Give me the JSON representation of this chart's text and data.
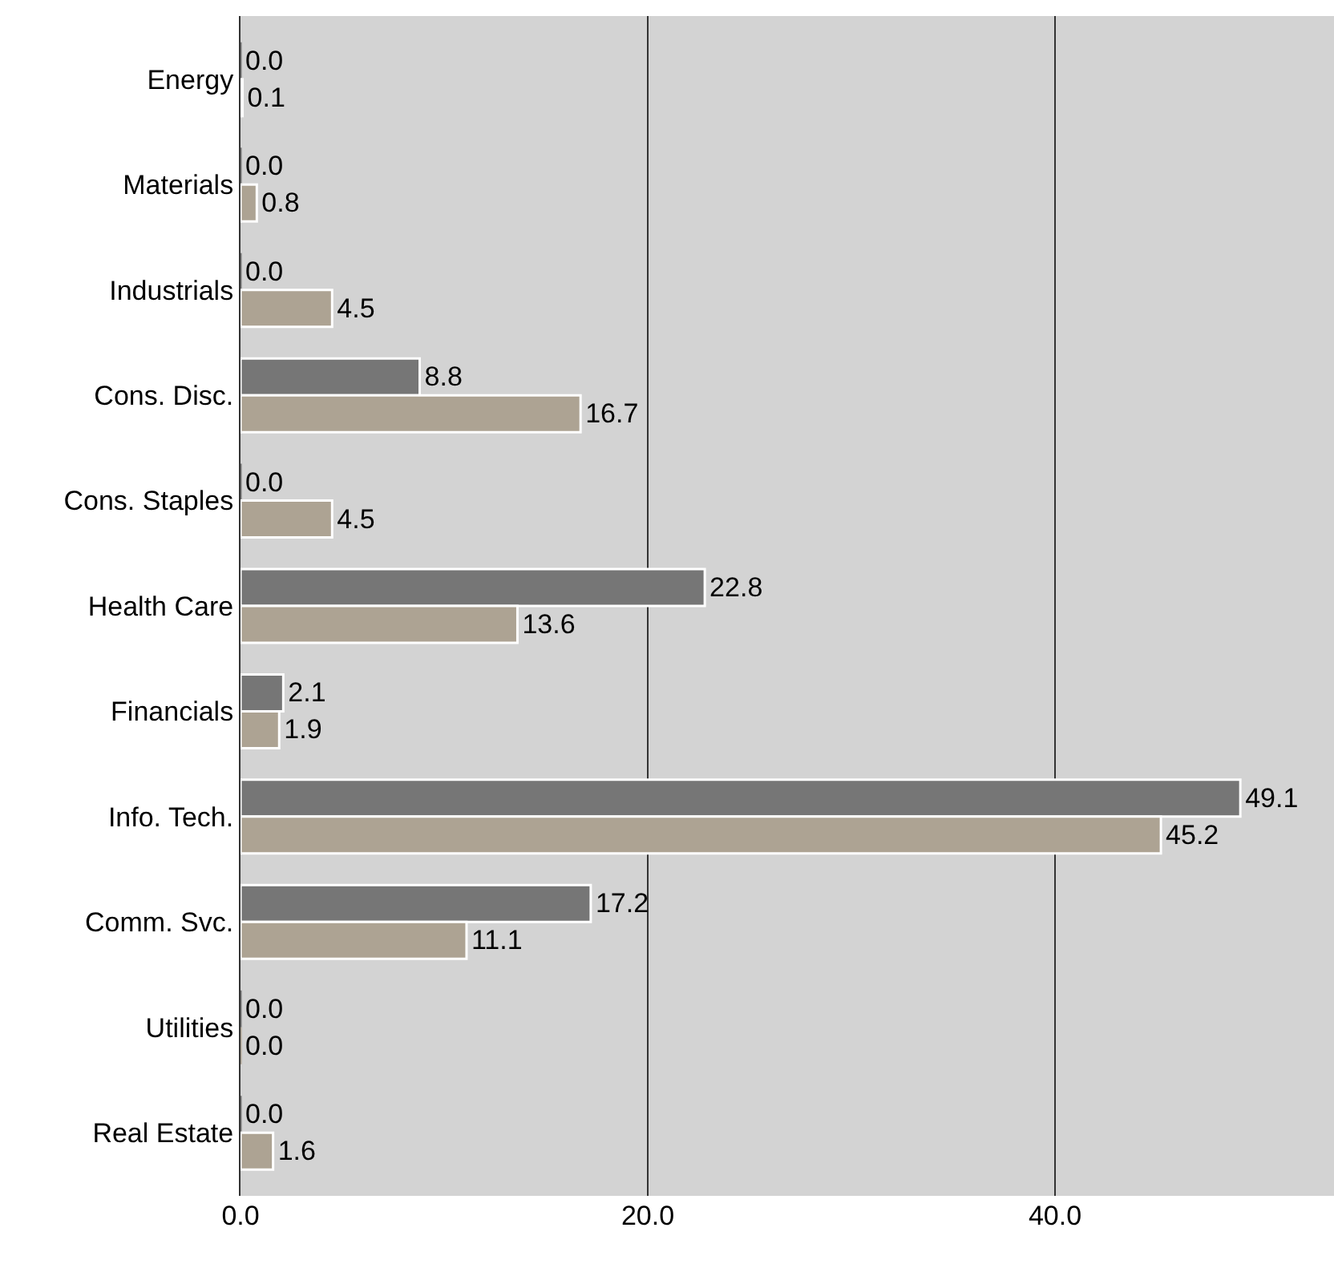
{
  "chart_data": {
    "type": "bar",
    "orientation": "horizontal",
    "categories": [
      "Energy",
      "Materials",
      "Industrials",
      "Cons. Disc.",
      "Cons. Staples",
      "Health Care",
      "Financials",
      "Info. Tech.",
      "Comm. Svc.",
      "Utilities",
      "Real Estate"
    ],
    "series": [
      {
        "color": "#767676",
        "values": [
          0.0,
          0.0,
          0.0,
          8.8,
          0.0,
          22.8,
          2.1,
          49.1,
          17.2,
          0.0,
          0.0
        ],
        "value_labels": [
          "0.0",
          "0.0",
          "0.0",
          "8.8",
          "0.0",
          "22.8",
          "2.1",
          "49.1",
          "17.2",
          "0.0",
          "0.0"
        ]
      },
      {
        "color": "#ada393",
        "values": [
          0.1,
          0.8,
          4.5,
          16.7,
          4.5,
          13.6,
          1.9,
          45.2,
          11.1,
          0.0,
          1.6
        ],
        "value_labels": [
          "0.1",
          "0.8",
          "4.5",
          "16.7",
          "4.5",
          "13.6",
          "1.9",
          "45.2",
          "11.1",
          "0.0",
          "1.6"
        ]
      }
    ],
    "xlim": [
      0,
      53.7
    ],
    "xticks": [
      {
        "value": 0,
        "label": "0.0"
      },
      {
        "value": 20,
        "label": "20.0"
      },
      {
        "value": 40,
        "label": "40.0"
      }
    ],
    "grid": "x",
    "legend": false
  }
}
